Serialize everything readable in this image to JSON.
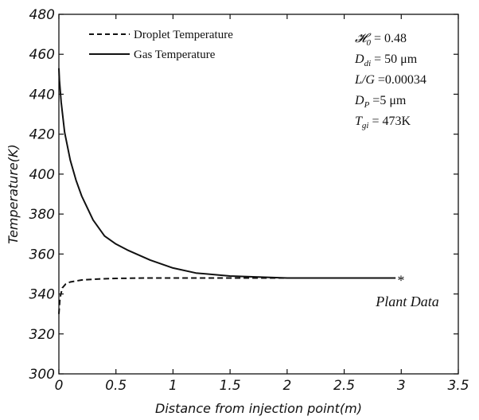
{
  "chart_data": {
    "type": "line",
    "xlabel": "Distance from injection point(m)",
    "ylabel": "Temperature(K)",
    "xlim": [
      0,
      3.5
    ],
    "ylim": [
      300,
      480
    ],
    "xticks": [
      "0",
      "0.5",
      "1",
      "1.5",
      "2",
      "2.5",
      "3",
      "3.5"
    ],
    "yticks": [
      "300",
      "320",
      "340",
      "360",
      "380",
      "400",
      "420",
      "440",
      "460",
      "480"
    ],
    "grid": false,
    "legend_position": "top-left",
    "series": [
      {
        "name": "Droplet Temperature",
        "style": "dashed",
        "x": [
          0,
          0.01,
          0.03,
          0.06,
          0.1,
          0.2,
          0.35,
          0.5,
          0.75,
          1.0,
          1.5,
          2.0,
          2.5,
          2.95
        ],
        "y": [
          330,
          338,
          343,
          345,
          346,
          347,
          347.5,
          347.8,
          348,
          348,
          348,
          348,
          348,
          348
        ]
      },
      {
        "name": "Gas Temperature",
        "style": "solid",
        "x": [
          0,
          0.005,
          0.02,
          0.05,
          0.1,
          0.15,
          0.2,
          0.3,
          0.4,
          0.5,
          0.6,
          0.8,
          1.0,
          1.2,
          1.5,
          2.0,
          2.5,
          2.95
        ],
        "y": [
          453,
          447,
          436,
          421,
          407,
          397,
          389,
          377,
          369,
          365,
          362,
          357,
          353,
          350.5,
          349,
          348,
          348,
          348
        ]
      }
    ],
    "annotations": {
      "params": [
        {
          "sym": "𝓗",
          "sub": "0",
          "rest": " = 0.48"
        },
        {
          "sym": "D",
          "sub": "di",
          "rest": " = 50 μm"
        },
        {
          "sym": "L/G",
          "sub": "",
          "rest": " =0.00034"
        },
        {
          "sym": "D",
          "sub": "P",
          "rest": " =5 μm"
        },
        {
          "sym": "T",
          "sub": "gi",
          "rest": " = 473K"
        }
      ],
      "marker_point": {
        "x": 2.95,
        "y": 348,
        "symbol": "*"
      },
      "marker_label": "Plant Data"
    }
  }
}
